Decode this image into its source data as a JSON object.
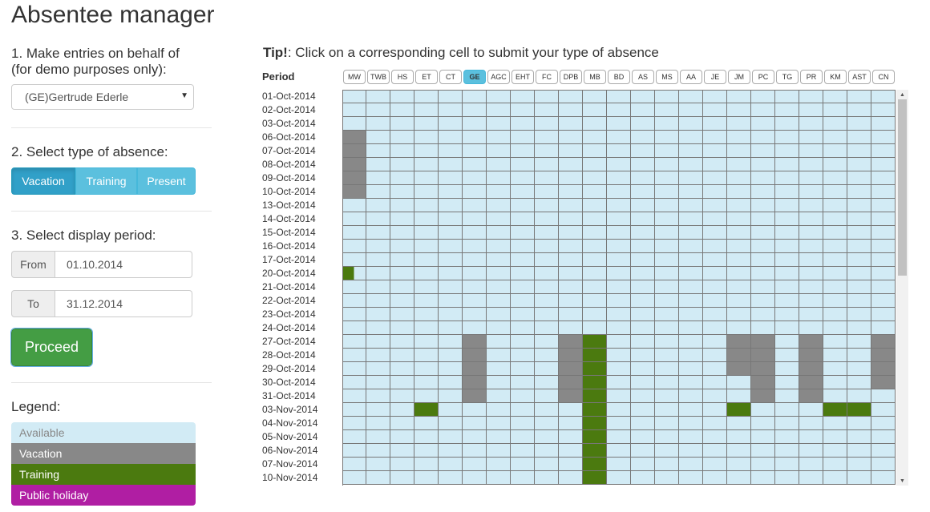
{
  "app": {
    "title": "Absentee manager"
  },
  "step1": {
    "label_line1": "1. Make entries on behalf of",
    "label_line2": "(for demo purposes only):",
    "selected_user": "(GE)Gertrude Ederle"
  },
  "step2": {
    "label": "2. Select type of absence:",
    "options": [
      "Vacation",
      "Training",
      "Present"
    ],
    "active": "Vacation"
  },
  "step3": {
    "label": "3. Select display period:",
    "from_label": "From",
    "from_value": "01.10.2014",
    "to_label": "To",
    "to_value": "31.12.2014"
  },
  "proceed_label": "Proceed",
  "legend": {
    "title": "Legend:",
    "items": [
      {
        "label": "Available",
        "color": "#d2ebf5",
        "text_color": "#888888"
      },
      {
        "label": "Vacation",
        "color": "#888888",
        "text_color": "#ffffff"
      },
      {
        "label": "Training",
        "color": "#4b7a0f",
        "text_color": "#ffffff"
      },
      {
        "label": "Public holiday",
        "color": "#b01ea3",
        "text_color": "#ffffff"
      }
    ]
  },
  "tip": {
    "bold": "Tip!",
    "text": ": Click on a corresponding cell to submit your type of absence"
  },
  "grid": {
    "period_label": "Period",
    "selected_column": "GE",
    "columns": [
      "MW",
      "TWB",
      "HS",
      "ET",
      "CT",
      "GE",
      "AGC",
      "EHT",
      "FC",
      "DPB",
      "MB",
      "BD",
      "AS",
      "MS",
      "AA",
      "JE",
      "JM",
      "PC",
      "TG",
      "PR",
      "KM",
      "AST",
      "CN"
    ],
    "rows": [
      "01-Oct-2014",
      "02-Oct-2014",
      "03-Oct-2014",
      "06-Oct-2014",
      "07-Oct-2014",
      "08-Oct-2014",
      "09-Oct-2014",
      "10-Oct-2014",
      "13-Oct-2014",
      "14-Oct-2014",
      "15-Oct-2014",
      "16-Oct-2014",
      "17-Oct-2014",
      "20-Oct-2014",
      "21-Oct-2014",
      "22-Oct-2014",
      "23-Oct-2014",
      "24-Oct-2014",
      "27-Oct-2014",
      "28-Oct-2014",
      "29-Oct-2014",
      "30-Oct-2014",
      "31-Oct-2014",
      "03-Nov-2014",
      "04-Nov-2014",
      "05-Nov-2014",
      "06-Nov-2014",
      "07-Nov-2014",
      "10-Nov-2014"
    ],
    "entries": [
      {
        "row": "06-Oct-2014",
        "col": "MW",
        "type": "vacation"
      },
      {
        "row": "07-Oct-2014",
        "col": "MW",
        "type": "vacation"
      },
      {
        "row": "08-Oct-2014",
        "col": "MW",
        "type": "vacation"
      },
      {
        "row": "09-Oct-2014",
        "col": "MW",
        "type": "vacation"
      },
      {
        "row": "10-Oct-2014",
        "col": "MW",
        "type": "vacation"
      },
      {
        "row": "20-Oct-2014",
        "col": "MW",
        "type": "training_partial"
      },
      {
        "row": "27-Oct-2014",
        "col": "GE",
        "type": "vacation"
      },
      {
        "row": "28-Oct-2014",
        "col": "GE",
        "type": "vacation"
      },
      {
        "row": "29-Oct-2014",
        "col": "GE",
        "type": "vacation"
      },
      {
        "row": "30-Oct-2014",
        "col": "GE",
        "type": "vacation"
      },
      {
        "row": "31-Oct-2014",
        "col": "GE",
        "type": "vacation"
      },
      {
        "row": "27-Oct-2014",
        "col": "DPB",
        "type": "vacation"
      },
      {
        "row": "28-Oct-2014",
        "col": "DPB",
        "type": "vacation"
      },
      {
        "row": "29-Oct-2014",
        "col": "DPB",
        "type": "vacation"
      },
      {
        "row": "30-Oct-2014",
        "col": "DPB",
        "type": "vacation"
      },
      {
        "row": "31-Oct-2014",
        "col": "DPB",
        "type": "vacation"
      },
      {
        "row": "27-Oct-2014",
        "col": "MB",
        "type": "training"
      },
      {
        "row": "28-Oct-2014",
        "col": "MB",
        "type": "training"
      },
      {
        "row": "29-Oct-2014",
        "col": "MB",
        "type": "training"
      },
      {
        "row": "30-Oct-2014",
        "col": "MB",
        "type": "training"
      },
      {
        "row": "31-Oct-2014",
        "col": "MB",
        "type": "training"
      },
      {
        "row": "03-Nov-2014",
        "col": "MB",
        "type": "training"
      },
      {
        "row": "04-Nov-2014",
        "col": "MB",
        "type": "training"
      },
      {
        "row": "05-Nov-2014",
        "col": "MB",
        "type": "training"
      },
      {
        "row": "06-Nov-2014",
        "col": "MB",
        "type": "training"
      },
      {
        "row": "07-Nov-2014",
        "col": "MB",
        "type": "training"
      },
      {
        "row": "10-Nov-2014",
        "col": "MB",
        "type": "training"
      },
      {
        "row": "27-Oct-2014",
        "col": "JM",
        "type": "vacation"
      },
      {
        "row": "28-Oct-2014",
        "col": "JM",
        "type": "vacation"
      },
      {
        "row": "29-Oct-2014",
        "col": "JM",
        "type": "vacation"
      },
      {
        "row": "27-Oct-2014",
        "col": "PC",
        "type": "vacation"
      },
      {
        "row": "28-Oct-2014",
        "col": "PC",
        "type": "vacation"
      },
      {
        "row": "29-Oct-2014",
        "col": "PC",
        "type": "vacation"
      },
      {
        "row": "30-Oct-2014",
        "col": "PC",
        "type": "vacation"
      },
      {
        "row": "31-Oct-2014",
        "col": "PC",
        "type": "vacation"
      },
      {
        "row": "27-Oct-2014",
        "col": "PR",
        "type": "vacation"
      },
      {
        "row": "28-Oct-2014",
        "col": "PR",
        "type": "vacation"
      },
      {
        "row": "29-Oct-2014",
        "col": "PR",
        "type": "vacation"
      },
      {
        "row": "30-Oct-2014",
        "col": "PR",
        "type": "vacation"
      },
      {
        "row": "31-Oct-2014",
        "col": "PR",
        "type": "vacation"
      },
      {
        "row": "27-Oct-2014",
        "col": "CN",
        "type": "vacation"
      },
      {
        "row": "28-Oct-2014",
        "col": "CN",
        "type": "vacation"
      },
      {
        "row": "29-Oct-2014",
        "col": "CN",
        "type": "vacation"
      },
      {
        "row": "30-Oct-2014",
        "col": "CN",
        "type": "vacation"
      },
      {
        "row": "03-Nov-2014",
        "col": "ET",
        "type": "training"
      },
      {
        "row": "03-Nov-2014",
        "col": "JM",
        "type": "training"
      },
      {
        "row": "03-Nov-2014",
        "col": "KM",
        "type": "training"
      },
      {
        "row": "03-Nov-2014",
        "col": "AST",
        "type": "training"
      }
    ],
    "colors": {
      "available": "#d2ebf5",
      "vacation": "#888888",
      "training": "#4b7a0f"
    }
  },
  "icons": {
    "select_caret": "caret-down-icon",
    "scroll_up": "scroll-up-arrow-icon",
    "scroll_down": "scroll-down-arrow-icon"
  }
}
